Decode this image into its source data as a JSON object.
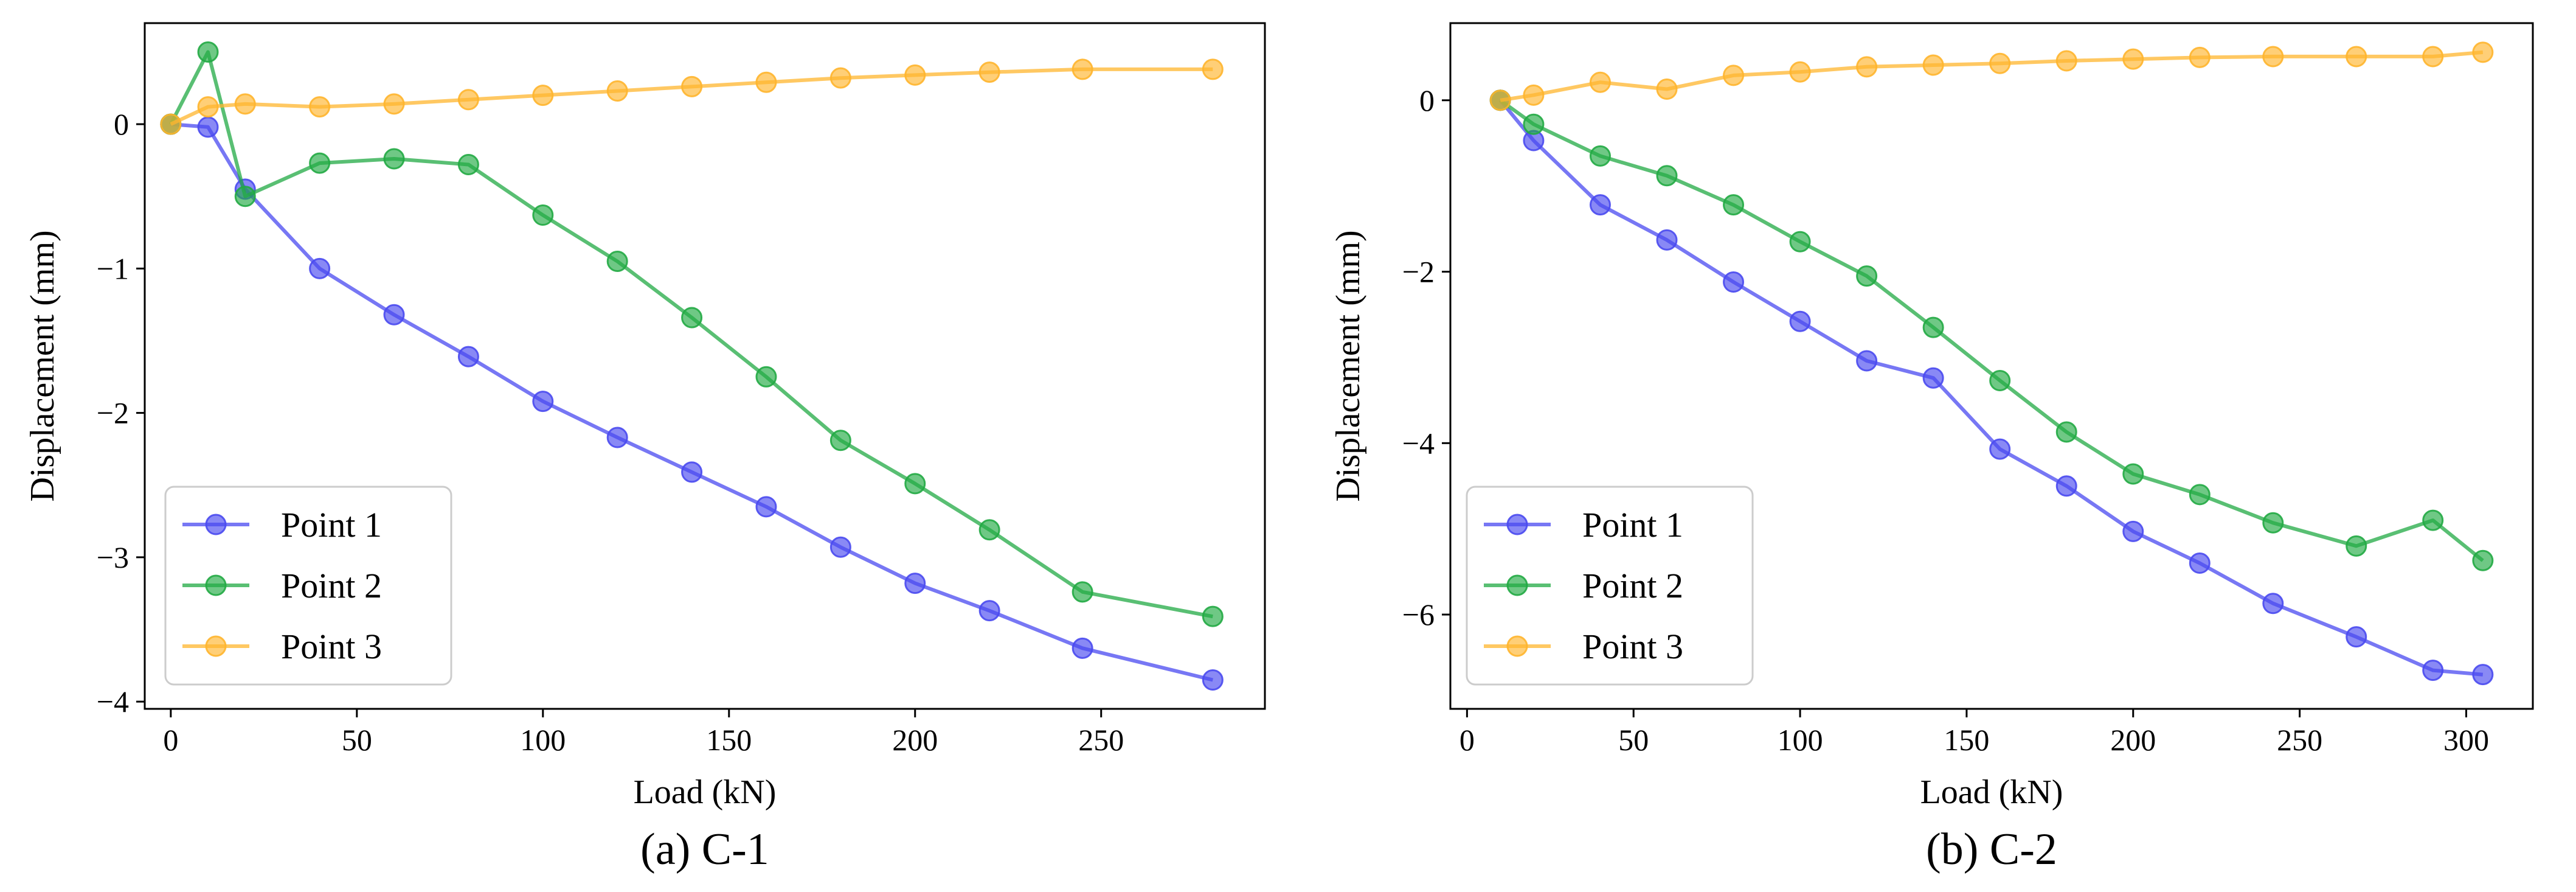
{
  "chart_data": [
    {
      "type": "line",
      "caption": "(a) C-1",
      "xlabel": "Load (kN)",
      "ylabel": "Displacement (mm)",
      "xlim": [
        -7,
        294
      ],
      "ylim": [
        -4.05,
        0.7
      ],
      "xticks": [
        0,
        50,
        100,
        150,
        200,
        250
      ],
      "yticks": [
        0,
        -1,
        -2,
        -3,
        -4
      ],
      "xtick_labels": [
        "0",
        "50",
        "100",
        "150",
        "200",
        "250"
      ],
      "ytick_labels": [
        "0",
        "−1",
        "−2",
        "−3",
        "−4"
      ],
      "grid": false,
      "legend_position": "lower-left",
      "series": [
        {
          "name": "Point 1",
          "color": "#4a4af0",
          "x": [
            0,
            10,
            20,
            40,
            60,
            80,
            100,
            120,
            140,
            160,
            180,
            200,
            220,
            245,
            280
          ],
          "y": [
            0,
            -0.02,
            -0.45,
            -1.0,
            -1.32,
            -1.61,
            -1.92,
            -2.17,
            -2.41,
            -2.65,
            -2.93,
            -3.18,
            -3.37,
            -3.63,
            -3.85
          ]
        },
        {
          "name": "Point 2",
          "color": "#22aa44",
          "x": [
            0,
            10,
            20,
            40,
            60,
            80,
            100,
            120,
            140,
            160,
            180,
            200,
            220,
            245,
            280
          ],
          "y": [
            0,
            0.5,
            -0.5,
            -0.27,
            -0.24,
            -0.28,
            -0.63,
            -0.95,
            -1.34,
            -1.75,
            -2.19,
            -2.49,
            -2.81,
            -3.24,
            -3.41
          ]
        },
        {
          "name": "Point 3",
          "color": "#ffb52e",
          "x": [
            0,
            10,
            20,
            40,
            60,
            80,
            100,
            120,
            140,
            160,
            180,
            200,
            220,
            245,
            280
          ],
          "y": [
            0,
            0.12,
            0.14,
            0.12,
            0.14,
            0.17,
            0.2,
            0.23,
            0.26,
            0.29,
            0.32,
            0.34,
            0.36,
            0.38,
            0.38
          ]
        }
      ]
    },
    {
      "type": "line",
      "caption": "(b) C-2",
      "xlabel": "Load (kN)",
      "ylabel": "Displacement (mm)",
      "xlim": [
        -5,
        320
      ],
      "ylim": [
        -7.1,
        0.9
      ],
      "xticks": [
        0,
        50,
        100,
        150,
        200,
        250,
        300
      ],
      "yticks": [
        0,
        -2,
        -4,
        -6
      ],
      "xtick_labels": [
        "0",
        "50",
        "100",
        "150",
        "200",
        "250",
        "300"
      ],
      "ytick_labels": [
        "0",
        "−2",
        "−4",
        "−6"
      ],
      "grid": false,
      "legend_position": "lower-left",
      "series": [
        {
          "name": "Point 1",
          "color": "#4a4af0",
          "x": [
            10,
            20,
            40,
            60,
            80,
            100,
            120,
            140,
            160,
            180,
            200,
            220,
            242,
            267,
            290,
            305
          ],
          "y": [
            0,
            -0.47,
            -1.22,
            -1.63,
            -2.12,
            -2.58,
            -3.04,
            -3.24,
            -4.07,
            -4.5,
            -5.03,
            -5.4,
            -5.87,
            -6.26,
            -6.65,
            -6.7
          ]
        },
        {
          "name": "Point 2",
          "color": "#22aa44",
          "x": [
            10,
            20,
            40,
            60,
            80,
            100,
            120,
            140,
            160,
            180,
            200,
            220,
            242,
            267,
            290,
            305
          ],
          "y": [
            0,
            -0.28,
            -0.65,
            -0.88,
            -1.22,
            -1.65,
            -2.05,
            -2.65,
            -3.27,
            -3.87,
            -4.36,
            -4.6,
            -4.93,
            -5.2,
            -4.9,
            -5.37
          ]
        },
        {
          "name": "Point 3",
          "color": "#ffb52e",
          "x": [
            10,
            20,
            40,
            60,
            80,
            100,
            120,
            140,
            160,
            180,
            200,
            220,
            242,
            267,
            290,
            305
          ],
          "y": [
            0,
            0.06,
            0.21,
            0.13,
            0.29,
            0.33,
            0.39,
            0.41,
            0.43,
            0.46,
            0.48,
            0.5,
            0.51,
            0.51,
            0.51,
            0.56
          ]
        }
      ]
    }
  ]
}
